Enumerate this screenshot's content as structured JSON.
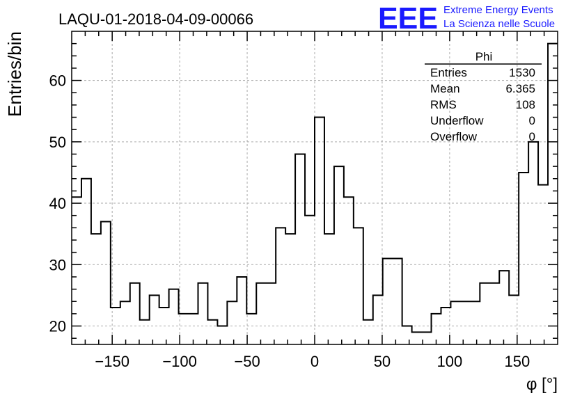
{
  "chart_data": {
    "type": "histogram",
    "title": "LAQU-01-2018-04-09-00066",
    "xlabel": "φ [°]",
    "ylabel": "Entries/bin",
    "xlim": [
      -180,
      180
    ],
    "ylim": [
      17,
      68
    ],
    "x_ticks": [
      -150,
      -100,
      -50,
      0,
      50,
      100,
      150
    ],
    "y_ticks": [
      20,
      30,
      40,
      50,
      60
    ],
    "grid": true,
    "bin_edges_start": -180,
    "bin_width": 7.2,
    "values": [
      41,
      44,
      35,
      37,
      23,
      24,
      27,
      21,
      25,
      23,
      26,
      22,
      22,
      27,
      21,
      20,
      24,
      28,
      22,
      27,
      27,
      36,
      35,
      48,
      38,
      54,
      35,
      46,
      41,
      36,
      21,
      25,
      31,
      31,
      20,
      19,
      19,
      22,
      23,
      24,
      24,
      24,
      27,
      27,
      29,
      25,
      45,
      50,
      43,
      66
    ],
    "stats_box": {
      "title": "Phi",
      "position": "top-right",
      "rows": [
        {
          "label": "Entries",
          "value": "1530"
        },
        {
          "label": "Mean",
          "value": "6.365"
        },
        {
          "label": "RMS",
          "value": "108"
        },
        {
          "label": "Underflow",
          "value": "0"
        },
        {
          "label": "Overflow",
          "value": "0"
        }
      ]
    }
  },
  "logo": {
    "mark": "EEE",
    "line1": "Extreme Energy Events",
    "line2": "La Scienza nelle Scuole",
    "color": "#1a1aff"
  }
}
